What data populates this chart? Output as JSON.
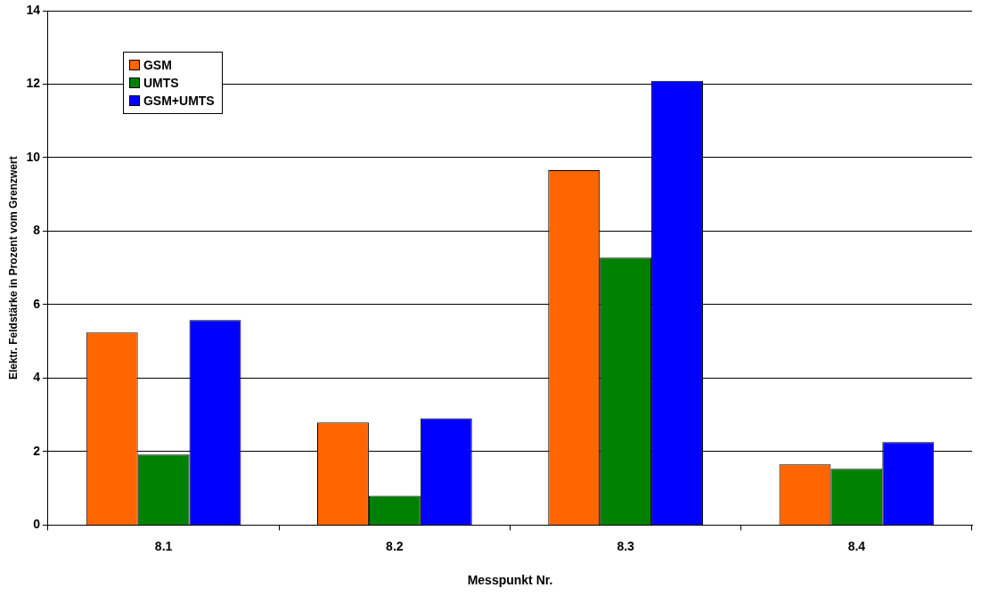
{
  "chart_data": {
    "type": "bar",
    "xlabel": "Messpunkt Nr.",
    "ylabel": "Elektr. Feldstärke in Prozent vom Grenzwert",
    "categories": [
      "8.1",
      "8.2",
      "8.3",
      "8.4"
    ],
    "series": [
      {
        "name": "GSM",
        "color": "#ff6600",
        "values": [
          5.24,
          2.79,
          9.66,
          1.65
        ]
      },
      {
        "name": "UMTS",
        "color": "#008000",
        "values": [
          1.92,
          0.8,
          7.28,
          1.53
        ]
      },
      {
        "name": "GSM+UMTS",
        "color": "#0000ff",
        "values": [
          5.58,
          2.91,
          12.09,
          2.26
        ]
      }
    ],
    "ylim": [
      0,
      14
    ],
    "yticks": [
      0,
      2,
      4,
      6,
      8,
      10,
      12,
      14
    ],
    "grid": "y",
    "legend": "top left"
  }
}
